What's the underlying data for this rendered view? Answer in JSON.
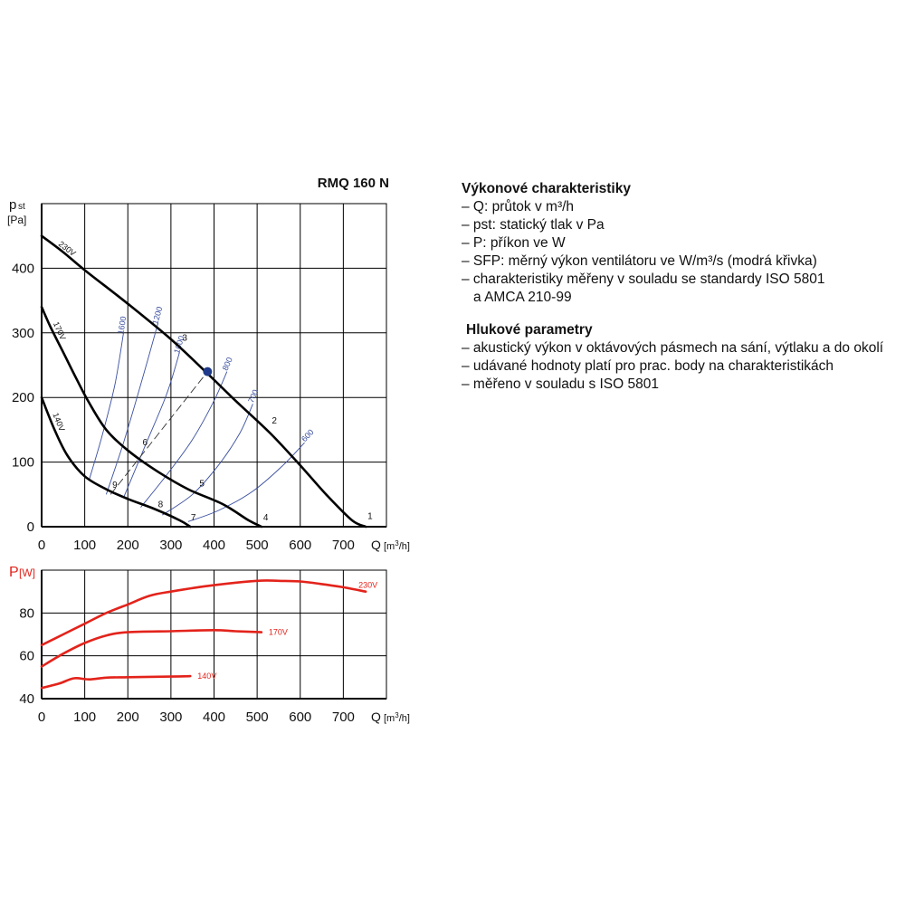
{
  "model": "RMQ 160 N",
  "pressure_chart": {
    "ylabel_main": "p",
    "ylabel_sub": "st",
    "yunit": "[Pa]",
    "xlabel": "Q",
    "xunit": "[m",
    "xunit_sup": "3",
    "xunit_end": "/h]"
  },
  "power_chart": {
    "ylabel_main": "P",
    "yunit": "[W]",
    "xlabel": "Q",
    "xunit": "[m",
    "xunit_sup": "3",
    "xunit_end": "/h]"
  },
  "colors": {
    "grid": "#000000",
    "curve": "#000000",
    "sfp": "#3a4fa0",
    "power": "#e3231b",
    "point": "#1f3a8a"
  },
  "chart_data": [
    {
      "type": "line",
      "xlim": [
        0,
        800
      ],
      "ylim": [
        0,
        500
      ],
      "xticks": [
        0,
        100,
        200,
        300,
        400,
        500,
        600,
        700
      ],
      "yticks": [
        0,
        100,
        200,
        300,
        400
      ],
      "series": [
        {
          "name": "230V",
          "points": [
            [
              0,
              450
            ],
            [
              50,
              425
            ],
            [
              100,
              397
            ],
            [
              200,
              345
            ],
            [
              300,
              290
            ],
            [
              380,
              240
            ],
            [
              450,
              195
            ],
            [
              530,
              145
            ],
            [
              600,
              95
            ],
            [
              660,
              50
            ],
            [
              720,
              10
            ],
            [
              752,
              0
            ]
          ]
        },
        {
          "name": "170V",
          "points": [
            [
              0,
              340
            ],
            [
              20,
              310
            ],
            [
              50,
              270
            ],
            [
              80,
              230
            ],
            [
              110,
              192
            ],
            [
              150,
              150
            ],
            [
              200,
              118
            ],
            [
              270,
              85
            ],
            [
              340,
              58
            ],
            [
              420,
              35
            ],
            [
              480,
              10
            ],
            [
              510,
              0
            ]
          ]
        },
        {
          "name": "140V",
          "points": [
            [
              0,
              200
            ],
            [
              30,
              150
            ],
            [
              60,
              110
            ],
            [
              100,
              78
            ],
            [
              150,
              58
            ],
            [
              200,
              43
            ],
            [
              260,
              28
            ],
            [
              320,
              10
            ],
            [
              345,
              0
            ]
          ]
        }
      ],
      "sfp_lines": [
        {
          "name": "1600",
          "points": [
            [
              110,
              72
            ],
            [
              140,
              140
            ],
            [
              170,
              220
            ],
            [
              190,
              300
            ]
          ]
        },
        {
          "name": "1200",
          "points": [
            [
              150,
              50
            ],
            [
              190,
              130
            ],
            [
              230,
              220
            ],
            [
              270,
              315
            ]
          ]
        },
        {
          "name": "1000",
          "points": [
            [
              190,
              45
            ],
            [
              240,
              125
            ],
            [
              290,
              205
            ],
            [
              320,
              270
            ]
          ]
        },
        {
          "name": "800",
          "points": [
            [
              230,
              30
            ],
            [
              290,
              80
            ],
            [
              350,
              135
            ],
            [
              400,
              195
            ],
            [
              430,
              240
            ]
          ]
        },
        {
          "name": "700",
          "points": [
            [
              280,
              18
            ],
            [
              350,
              50
            ],
            [
              410,
              95
            ],
            [
              460,
              145
            ],
            [
              490,
              190
            ]
          ]
        },
        {
          "name": "600",
          "points": [
            [
              340,
              8
            ],
            [
              410,
              25
            ],
            [
              490,
              55
            ],
            [
              560,
              95
            ],
            [
              610,
              130
            ]
          ]
        }
      ],
      "system_line": {
        "points": [
          [
            160,
            50
          ],
          [
            385,
            240
          ]
        ]
      },
      "operating_point": {
        "q": 385,
        "p": 240
      },
      "point_labels": [
        {
          "label": "1",
          "q": 762,
          "p": 12
        },
        {
          "label": "2",
          "q": 540,
          "p": 160
        },
        {
          "label": "3",
          "q": 332,
          "p": 288
        },
        {
          "label": "4",
          "q": 520,
          "p": 10
        },
        {
          "label": "5",
          "q": 372,
          "p": 62
        },
        {
          "label": "6",
          "q": 240,
          "p": 126
        },
        {
          "label": "7",
          "q": 352,
          "p": 10
        },
        {
          "label": "8",
          "q": 276,
          "p": 30
        },
        {
          "label": "9",
          "q": 170,
          "p": 60
        }
      ]
    },
    {
      "type": "line",
      "xlim": [
        0,
        800
      ],
      "ylim": [
        40,
        100
      ],
      "xticks": [
        0,
        100,
        200,
        300,
        400,
        500,
        600,
        700
      ],
      "yticks": [
        40,
        60,
        80
      ],
      "series": [
        {
          "name": "230V",
          "points": [
            [
              0,
              65
            ],
            [
              50,
              70
            ],
            [
              100,
              75
            ],
            [
              150,
              80
            ],
            [
              200,
              84
            ],
            [
              250,
              88
            ],
            [
              300,
              90
            ],
            [
              400,
              93
            ],
            [
              500,
              95
            ],
            [
              550,
              95
            ],
            [
              600,
              94.7
            ],
            [
              650,
              93.5
            ],
            [
              700,
              92
            ],
            [
              752,
              90
            ]
          ]
        },
        {
          "name": "170V",
          "points": [
            [
              0,
              55
            ],
            [
              50,
              61
            ],
            [
              100,
              66
            ],
            [
              150,
              69.5
            ],
            [
              200,
              71
            ],
            [
              300,
              71.5
            ],
            [
              400,
              72
            ],
            [
              450,
              71.5
            ],
            [
              510,
              71
            ]
          ]
        },
        {
          "name": "140V",
          "points": [
            [
              0,
              45
            ],
            [
              40,
              47
            ],
            [
              75,
              49.5
            ],
            [
              110,
              49
            ],
            [
              150,
              49.8
            ],
            [
              200,
              50
            ],
            [
              300,
              50.3
            ],
            [
              345,
              50.5
            ]
          ]
        }
      ]
    }
  ],
  "description": {
    "heading1": "Výkonové charakteristiky",
    "items1": [
      "– Q: průtok v m³/h",
      "– pst: statický tlak v Pa",
      "– P: příkon ve W",
      "– SFP: měrný výkon ventilátoru ve W/m³/s (modrá křivka)",
      "– charakteristiky měřeny v souladu se standardy ISO 5801"
    ],
    "items1_cont": "a AMCA 210-99",
    "heading2": "Hlukové parametry",
    "items2": [
      "– akustický výkon v oktávových pásmech na sání, výtlaku a do okolí",
      "– udávané hodnoty platí pro prac. body na charakteristikách",
      "– měřeno v souladu s ISO 5801"
    ]
  }
}
